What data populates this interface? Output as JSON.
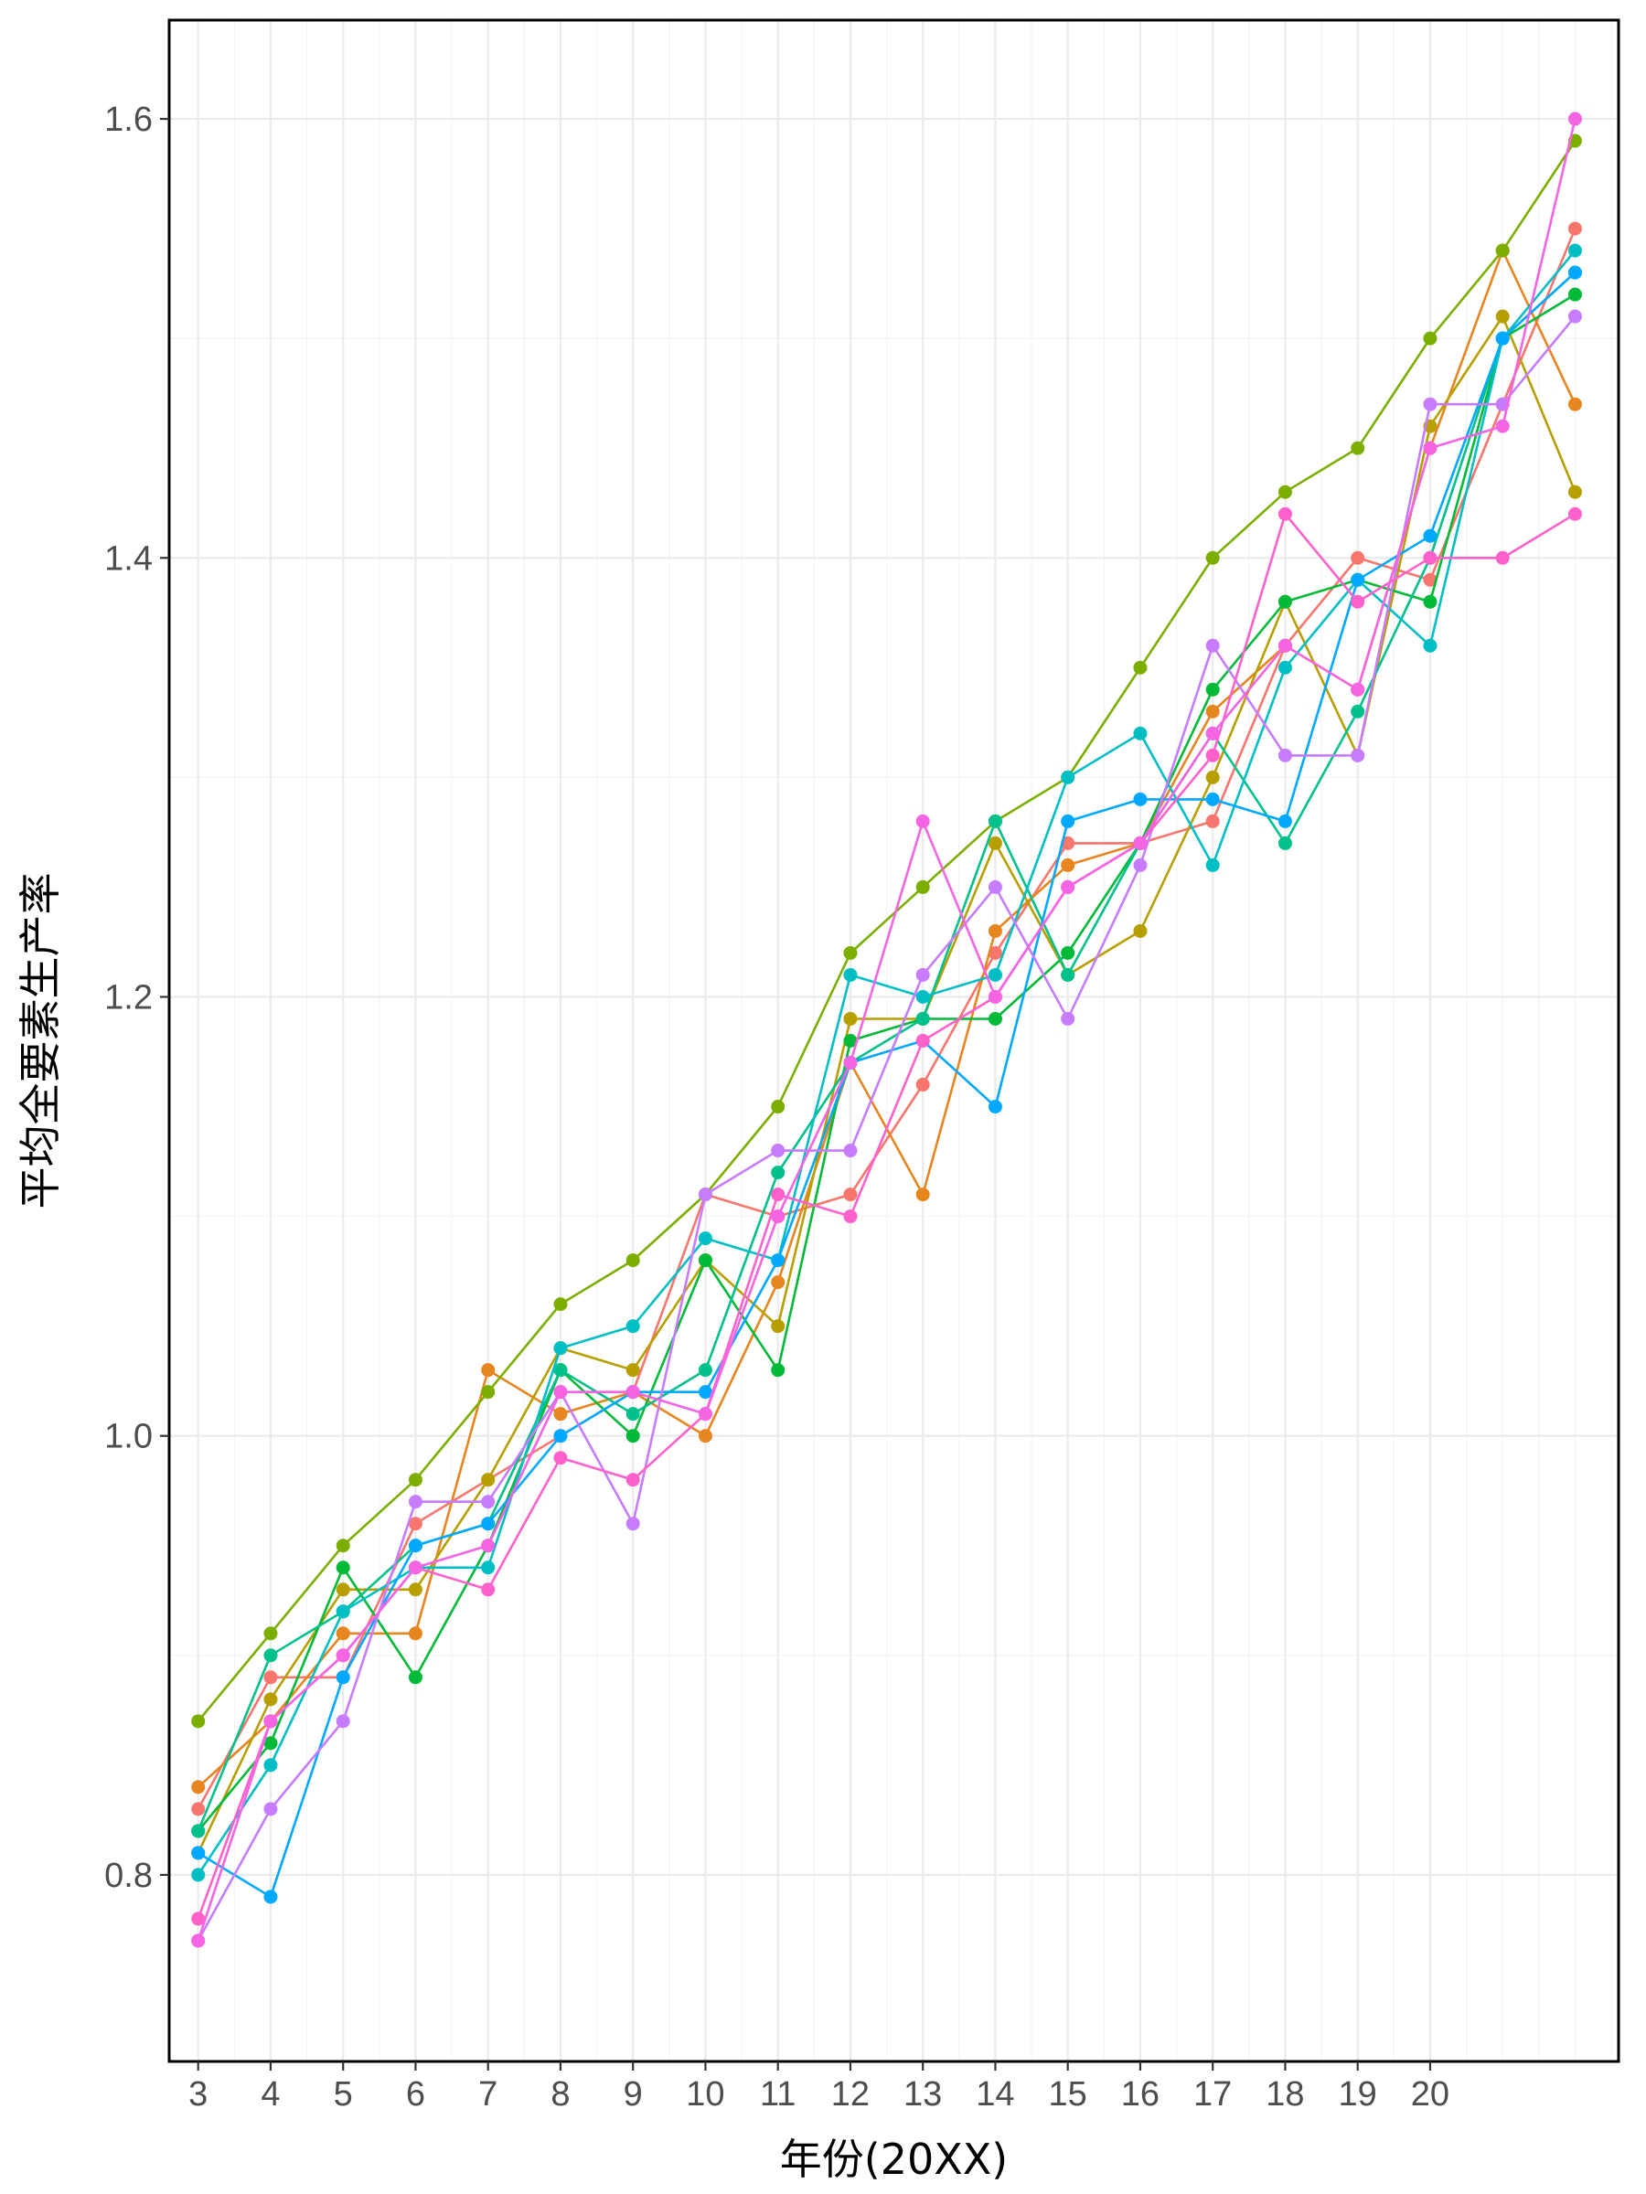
{
  "chart_data": {
    "type": "line",
    "xlabel": "年份(20XX)",
    "ylabel": "平均全要素生产率",
    "x_tick_labels": [
      "3",
      "4",
      "5",
      "6",
      "7",
      "8",
      "9",
      "10",
      "11",
      "12",
      "13",
      "14",
      "15",
      "16",
      "17",
      "18",
      "19",
      "20"
    ],
    "y_tick_labels": [
      "0.8",
      "1.0",
      "1.2",
      "1.4",
      "1.6"
    ],
    "x": [
      3,
      4,
      5,
      6,
      7,
      8,
      9,
      10,
      11,
      12,
      13,
      14,
      15,
      16,
      17,
      18,
      19,
      20,
      21,
      22
    ],
    "xlim": [
      2.6,
      22.6
    ],
    "ylim": [
      0.715,
      1.645
    ],
    "y_ticks": [
      0.8,
      1.0,
      1.2,
      1.4,
      1.6
    ],
    "grid": true,
    "legend": "none",
    "series": [
      {
        "color": "#F8766D",
        "values": [
          0.83,
          0.89,
          0.89,
          0.96,
          0.98,
          1.0,
          1.02,
          1.11,
          1.1,
          1.11,
          1.16,
          1.22,
          1.27,
          1.27,
          1.28,
          1.36,
          1.4,
          1.39,
          1.47,
          1.55
        ]
      },
      {
        "color": "#E7851E",
        "values": [
          0.84,
          0.87,
          0.91,
          0.91,
          1.03,
          1.01,
          1.02,
          1.0,
          1.07,
          1.17,
          1.11,
          1.23,
          1.26,
          1.27,
          1.33,
          1.36,
          1.34,
          1.45,
          1.54,
          1.47
        ]
      },
      {
        "color": "#B79F00",
        "values": [
          0.81,
          0.88,
          0.93,
          0.93,
          0.98,
          1.04,
          1.03,
          1.08,
          1.05,
          1.19,
          1.19,
          1.27,
          1.21,
          1.23,
          1.3,
          1.38,
          1.31,
          1.46,
          1.51,
          1.43
        ]
      },
      {
        "color": "#7CAE00",
        "values": [
          0.87,
          0.91,
          0.95,
          0.98,
          1.02,
          1.06,
          1.08,
          1.11,
          1.15,
          1.22,
          1.25,
          1.28,
          1.3,
          1.35,
          1.4,
          1.43,
          1.45,
          1.5,
          1.54,
          1.59
        ]
      },
      {
        "color": "#00BA38",
        "values": [
          0.82,
          0.86,
          0.94,
          0.89,
          0.95,
          1.03,
          1.0,
          1.08,
          1.03,
          1.18,
          1.19,
          1.19,
          1.22,
          1.27,
          1.34,
          1.38,
          1.39,
          1.38,
          1.5,
          1.52
        ]
      },
      {
        "color": "#00C08B",
        "values": [
          0.82,
          0.9,
          0.92,
          0.95,
          0.96,
          1.03,
          1.01,
          1.03,
          1.12,
          1.17,
          1.19,
          1.28,
          1.21,
          1.27,
          1.32,
          1.27,
          1.33,
          1.4,
          1.5,
          1.53
        ]
      },
      {
        "color": "#00BFC4",
        "values": [
          0.8,
          0.85,
          0.92,
          0.94,
          0.94,
          1.04,
          1.05,
          1.09,
          1.08,
          1.21,
          1.2,
          1.21,
          1.3,
          1.32,
          1.26,
          1.35,
          1.39,
          1.36,
          1.5,
          1.54
        ]
      },
      {
        "color": "#00A9FF",
        "values": [
          0.81,
          0.79,
          0.89,
          0.95,
          0.96,
          1.0,
          1.02,
          1.02,
          1.08,
          1.17,
          1.18,
          1.15,
          1.28,
          1.29,
          1.29,
          1.28,
          1.39,
          1.41,
          1.5,
          1.53
        ]
      },
      {
        "color": "#C77CFF",
        "values": [
          0.77,
          0.83,
          0.87,
          0.97,
          0.97,
          1.02,
          0.96,
          1.11,
          1.13,
          1.13,
          1.21,
          1.25,
          1.19,
          1.26,
          1.36,
          1.31,
          1.31,
          1.47,
          1.47,
          1.51
        ]
      },
      {
        "color": "#FF61CC",
        "values": [
          0.78,
          0.87,
          0.9,
          0.94,
          0.93,
          0.99,
          0.98,
          1.01,
          1.11,
          1.1,
          1.18,
          1.2,
          1.25,
          1.27,
          1.31,
          1.42,
          1.38,
          1.4,
          1.4,
          1.42
        ]
      },
      {
        "color": "#F564E3",
        "values": [
          0.77,
          0.87,
          0.9,
          0.94,
          0.95,
          1.02,
          1.02,
          1.01,
          1.1,
          1.17,
          1.28,
          1.2,
          1.25,
          1.27,
          1.32,
          1.36,
          1.34,
          1.45,
          1.46,
          1.6
        ]
      }
    ]
  }
}
